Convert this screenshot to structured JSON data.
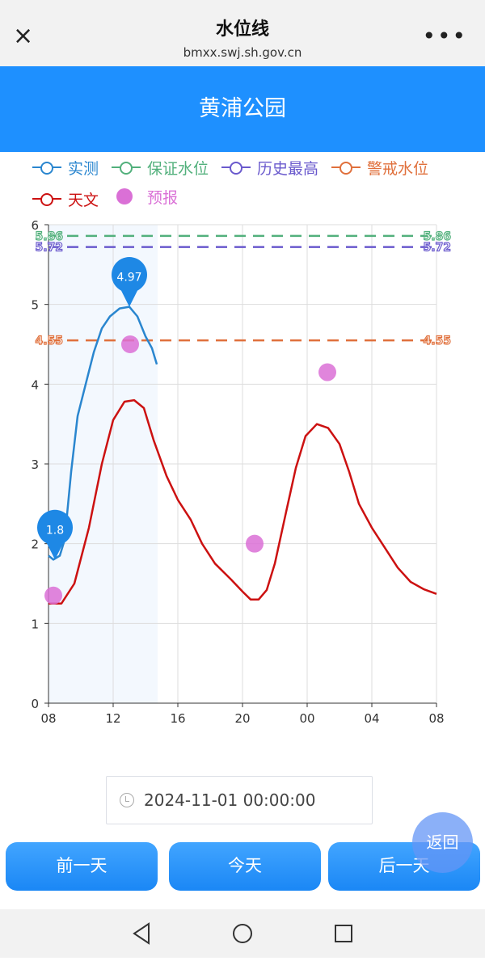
{
  "topbar": {
    "title": "水位线",
    "url": "bmxx.swj.sh.gov.cn",
    "close_icon": "×",
    "more_icon": "•••"
  },
  "header": {
    "title": "黄浦公园"
  },
  "legend": [
    {
      "label": "实测",
      "color": "#2a86cf",
      "type": "line"
    },
    {
      "label": "保证水位",
      "color": "#52b07c",
      "type": "line"
    },
    {
      "label": "历史最高",
      "color": "#6a5acd",
      "type": "line"
    },
    {
      "label": "警戒水位",
      "color": "#e0703c",
      "type": "line"
    },
    {
      "label": "天文",
      "color": "#cc1111",
      "type": "line"
    },
    {
      "label": "预报",
      "color": "#da70d6",
      "type": "dot"
    }
  ],
  "chart_data": {
    "type": "line",
    "x_unit": "hours since 08:00",
    "xticks": [
      "08",
      "12",
      "16",
      "20",
      "00",
      "04",
      "08"
    ],
    "xlim": [
      0,
      24
    ],
    "yticks": [
      "0",
      "1",
      "2",
      "3",
      "4",
      "5",
      "6"
    ],
    "ylim": [
      0,
      6
    ],
    "thresholds": [
      {
        "name": "保证水位",
        "value": 5.86,
        "label": "5.86",
        "color": "#52b07c"
      },
      {
        "name": "历史最高",
        "value": 5.72,
        "label": "5.72",
        "color": "#6a5acd"
      },
      {
        "name": "警戒水位",
        "value": 4.55,
        "label": "4.55",
        "color": "#e0703c"
      }
    ],
    "measured": {
      "name": "实测",
      "color": "#2a86cf",
      "points": [
        [
          0,
          1.85
        ],
        [
          0.3,
          1.8
        ],
        [
          0.7,
          1.85
        ],
        [
          1,
          2.05
        ],
        [
          1.4,
          2.9
        ],
        [
          1.8,
          3.6
        ],
        [
          2.3,
          4.0
        ],
        [
          2.8,
          4.4
        ],
        [
          3.3,
          4.7
        ],
        [
          3.8,
          4.85
        ],
        [
          4.4,
          4.95
        ],
        [
          5,
          4.97
        ],
        [
          5.5,
          4.85
        ],
        [
          6,
          4.6
        ],
        [
          6.4,
          4.45
        ],
        [
          6.7,
          4.25
        ]
      ]
    },
    "astronomical": {
      "name": "天文",
      "color": "#cc1111",
      "points": [
        [
          0,
          1.25
        ],
        [
          0.8,
          1.25
        ],
        [
          1.6,
          1.5
        ],
        [
          2.5,
          2.2
        ],
        [
          3.3,
          3.0
        ],
        [
          4,
          3.55
        ],
        [
          4.7,
          3.78
        ],
        [
          5.3,
          3.8
        ],
        [
          5.9,
          3.7
        ],
        [
          6.5,
          3.3
        ],
        [
          7.3,
          2.85
        ],
        [
          8,
          2.55
        ],
        [
          8.8,
          2.3
        ],
        [
          9.5,
          2.0
        ],
        [
          10.3,
          1.75
        ],
        [
          11.3,
          1.55
        ],
        [
          12,
          1.4
        ],
        [
          12.5,
          1.3
        ],
        [
          13,
          1.3
        ],
        [
          13.5,
          1.42
        ],
        [
          14,
          1.75
        ],
        [
          14.7,
          2.4
        ],
        [
          15.3,
          2.95
        ],
        [
          15.9,
          3.35
        ],
        [
          16.6,
          3.5
        ],
        [
          17.3,
          3.45
        ],
        [
          18,
          3.25
        ],
        [
          18.6,
          2.9
        ],
        [
          19.2,
          2.5
        ],
        [
          20,
          2.2
        ],
        [
          20.8,
          1.95
        ],
        [
          21.6,
          1.7
        ],
        [
          22.4,
          1.52
        ],
        [
          23.2,
          1.43
        ],
        [
          24,
          1.37
        ]
      ]
    },
    "forecast": {
      "name": "预报",
      "color": "#da70d6",
      "points": [
        [
          0.3,
          1.35
        ],
        [
          5.05,
          4.5
        ],
        [
          12.75,
          2.0
        ],
        [
          17.25,
          4.15
        ]
      ]
    },
    "markers": [
      {
        "x": 0.4,
        "y": 1.8,
        "label": "1.8"
      },
      {
        "x": 5,
        "y": 4.97,
        "label": "4.97"
      }
    ],
    "shaded_range": [
      0,
      6.75
    ]
  },
  "datepicker": {
    "value": "2024-11-01 00:00:00"
  },
  "buttons": {
    "prev": "前一天",
    "today": "今天",
    "next": "后一天",
    "back": "返回"
  }
}
